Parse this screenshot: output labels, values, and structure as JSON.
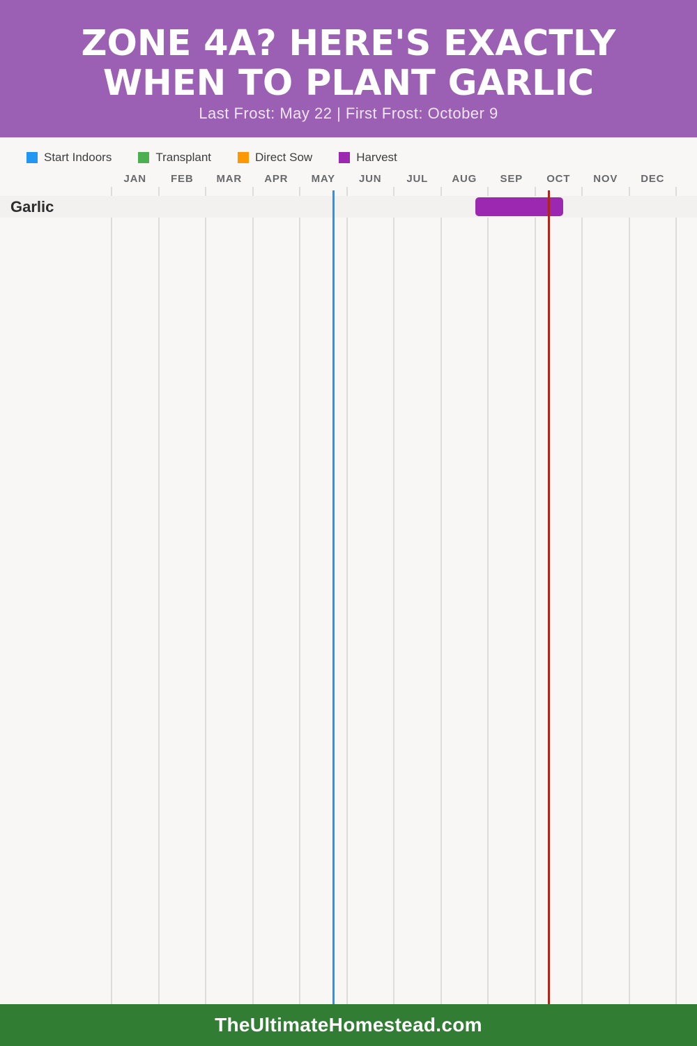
{
  "header": {
    "title_line1": "ZONE 4A? HERE'S EXACTLY",
    "title_line2": "WHEN TO PLANT GARLIC",
    "subtitle": "Last Frost: May 22 | First Frost: October 9"
  },
  "legend": {
    "items": [
      {
        "label": "Start Indoors",
        "color": "#2196f3"
      },
      {
        "label": "Transplant",
        "color": "#4caf50"
      },
      {
        "label": "Direct Sow",
        "color": "#ff9800"
      },
      {
        "label": "Harvest",
        "color": "#9c27b0"
      }
    ]
  },
  "chart_data": {
    "type": "timeline",
    "title": "Zone 4a garlic planting calendar",
    "months": [
      "JAN",
      "FEB",
      "MAR",
      "APR",
      "MAY",
      "JUN",
      "JUL",
      "AUG",
      "SEP",
      "OCT",
      "NOV",
      "DEC"
    ],
    "grid": true,
    "rows": [
      {
        "label": "Garlic",
        "bars": [
          {
            "category": "Harvest",
            "color": "#9c27b0",
            "start_month_fraction": 7.73,
            "end_month_fraction": 9.6,
            "approx_start": "Aug 23",
            "approx_end": "Oct 19"
          }
        ]
      }
    ],
    "markers": [
      {
        "name": "last-frost",
        "label": "Last Frost: May 22",
        "month_fraction": 4.72,
        "color": "#2196f3"
      },
      {
        "name": "first-frost",
        "label": "First Frost: October 9",
        "month_fraction": 9.3,
        "color": "#b02419"
      }
    ]
  },
  "footer": {
    "site": "TheUltimateHomestead.com"
  },
  "colors": {
    "header_background": "#9b5fb3",
    "page_background": "#f8f7f5",
    "row_stripe": "#f2f1ef",
    "gridline": "#dcdcda",
    "footer_background": "#317d34"
  }
}
